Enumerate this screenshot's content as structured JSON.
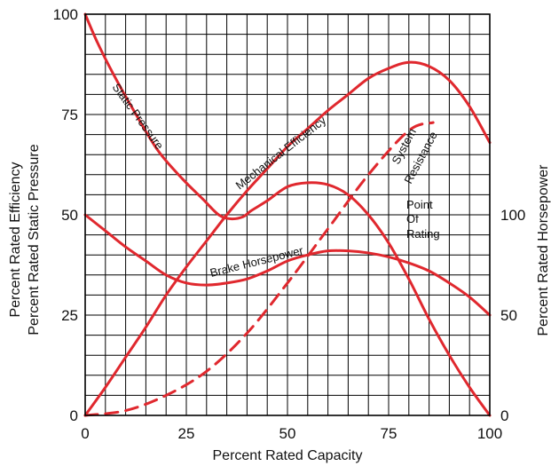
{
  "chart_data": {
    "type": "line",
    "title": "",
    "xlabel": "Percent Rated Capacity",
    "ylabel_left": [
      "Percent Rated Static Pressure",
      "Percent Rated Efficiency"
    ],
    "ylabel_right": "Percent Rated Horsepower",
    "xlim": [
      0,
      100
    ],
    "ylim": [
      0,
      100
    ],
    "x_ticks": [
      "0",
      "25",
      "50",
      "75",
      "100"
    ],
    "y_ticks_left": [
      "0",
      "25",
      "50",
      "75",
      "100"
    ],
    "y_ticks_right": [
      {
        "label": "0",
        "at": 0
      },
      {
        "label": "50",
        "at": 25
      },
      {
        "label": "100",
        "at": 50
      }
    ],
    "grid": true,
    "line_color": "#e0282e",
    "series": [
      {
        "id": "static-pressure",
        "label": "Static Pressure",
        "style": "solid",
        "points": [
          [
            0,
            100
          ],
          [
            3,
            93
          ],
          [
            7,
            85
          ],
          [
            12,
            76
          ],
          [
            18,
            66
          ],
          [
            24,
            59
          ],
          [
            29,
            54
          ],
          [
            33,
            50
          ],
          [
            36,
            49
          ],
          [
            39,
            49.5
          ],
          [
            41,
            51
          ],
          [
            45,
            53.5
          ],
          [
            50,
            57
          ],
          [
            55,
            58
          ],
          [
            60,
            57.5
          ],
          [
            65,
            55
          ],
          [
            70,
            50
          ],
          [
            75,
            43
          ],
          [
            80,
            34
          ],
          [
            85,
            24
          ],
          [
            90,
            15
          ],
          [
            95,
            7
          ],
          [
            100,
            0
          ]
        ]
      },
      {
        "id": "mechanical-efficiency",
        "label": "Mechanical Efficiency",
        "style": "solid",
        "points": [
          [
            0,
            0
          ],
          [
            5,
            7
          ],
          [
            10,
            14.5
          ],
          [
            15,
            22
          ],
          [
            20,
            30
          ],
          [
            25,
            37
          ],
          [
            30,
            43.5
          ],
          [
            35,
            50
          ],
          [
            40,
            56
          ],
          [
            45,
            61.5
          ],
          [
            50,
            67
          ],
          [
            55,
            71.5
          ],
          [
            60,
            76
          ],
          [
            65,
            80
          ],
          [
            70,
            84
          ],
          [
            75,
            86.5
          ],
          [
            80,
            88
          ],
          [
            85,
            87
          ],
          [
            90,
            83.5
          ],
          [
            95,
            77
          ],
          [
            100,
            68
          ]
        ]
      },
      {
        "id": "brake-horsepower",
        "label": "Brake Horsepower",
        "style": "solid",
        "points": [
          [
            0,
            50
          ],
          [
            5,
            46
          ],
          [
            10,
            42
          ],
          [
            15,
            38.5
          ],
          [
            20,
            35
          ],
          [
            25,
            33
          ],
          [
            30,
            32.5
          ],
          [
            35,
            33
          ],
          [
            40,
            34
          ],
          [
            45,
            36
          ],
          [
            50,
            38.5
          ],
          [
            55,
            40
          ],
          [
            60,
            41
          ],
          [
            65,
            41
          ],
          [
            70,
            40.5
          ],
          [
            75,
            39.5
          ],
          [
            80,
            38
          ],
          [
            85,
            36
          ],
          [
            90,
            33
          ],
          [
            95,
            29.5
          ],
          [
            100,
            25
          ]
        ]
      },
      {
        "id": "system-resistance",
        "label": "System Resistance",
        "style": "dashed",
        "points": [
          [
            0,
            0
          ],
          [
            10,
            1.2
          ],
          [
            20,
            5
          ],
          [
            30,
            11
          ],
          [
            40,
            20.5
          ],
          [
            50,
            33
          ],
          [
            60,
            46.5
          ],
          [
            70,
            60
          ],
          [
            80,
            71
          ],
          [
            86,
            73
          ]
        ]
      }
    ],
    "annotations": [
      {
        "id": "static-pressure-label",
        "text": "Static Pressure"
      },
      {
        "id": "mechanical-efficiency-label",
        "text": "Mechanical Efficiency"
      },
      {
        "id": "brake-horsepower-label",
        "text": "Brake Horsepower"
      },
      {
        "id": "system-label",
        "text": "System"
      },
      {
        "id": "resistance-label",
        "text": "Resistance"
      },
      {
        "id": "point-label",
        "text": "Point"
      },
      {
        "id": "of-label",
        "text": "Of"
      },
      {
        "id": "rating-label",
        "text": "Rating"
      }
    ]
  }
}
